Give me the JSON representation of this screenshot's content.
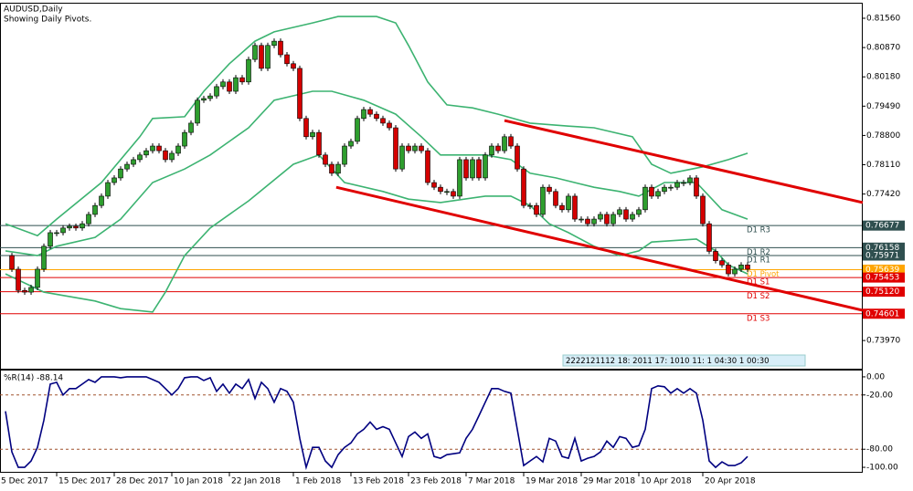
{
  "chart_data": [
    {
      "type": "candlestick",
      "title": "AUDUSD,Daily",
      "subtitle": "Showing Daily Pivots.",
      "timer_strip": "2222121112 18: 2011 17: 1010 11: 1 04:30 1 00:30",
      "bull_color": "#2e9e2e",
      "bear_color": "#d40000",
      "xlim": [
        -0.86,
        133.86
      ],
      "ylim": [
        0.73306,
        0.81904
      ],
      "yticks": [
        {
          "value": 0.8156,
          "label": "0.81560"
        },
        {
          "value": 0.8087,
          "label": "0.80870"
        },
        {
          "value": 0.8018,
          "label": "0.80180"
        },
        {
          "value": 0.7949,
          "label": "0.79490"
        },
        {
          "value": 0.788,
          "label": "0.78800"
        },
        {
          "value": 0.7811,
          "label": "0.78110"
        },
        {
          "value": 0.7742,
          "label": "0.77420"
        },
        {
          "value": 0.7397,
          "label": "0.73970"
        }
      ],
      "close": [
        0.7597,
        0.7565,
        0.7515,
        0.7511,
        0.7522,
        0.7565,
        0.7619,
        0.7651,
        0.7651,
        0.7662,
        0.7666,
        0.7662,
        0.7672,
        0.7694,
        0.7715,
        0.7737,
        0.7769,
        0.778,
        0.7801,
        0.7812,
        0.7823,
        0.7834,
        0.7844,
        0.7855,
        0.7844,
        0.7823,
        0.7838,
        0.7855,
        0.7887,
        0.7909,
        0.7963,
        0.7967,
        0.7973,
        0.7995,
        0.8006,
        0.7984,
        0.8016,
        0.8006,
        0.8059,
        0.8092,
        0.8038,
        0.8092,
        0.8102,
        0.807,
        0.8049,
        0.8038,
        0.792,
        0.7877,
        0.7887,
        0.7834,
        0.7812,
        0.7791,
        0.7812,
        0.7855,
        0.7866,
        0.792,
        0.7941,
        0.793,
        0.792,
        0.7909,
        0.7898,
        0.7801,
        0.7855,
        0.7844,
        0.7855,
        0.7844,
        0.7769,
        0.7758,
        0.7748,
        0.7748,
        0.7737,
        0.7823,
        0.778,
        0.7823,
        0.778,
        0.7834,
        0.7855,
        0.7844,
        0.7877,
        0.7855,
        0.7801,
        0.7715,
        0.7715,
        0.7694,
        0.7758,
        0.7748,
        0.7715,
        0.7705,
        0.7737,
        0.7683,
        0.7683,
        0.7672,
        0.7683,
        0.7694,
        0.7672,
        0.7694,
        0.7705,
        0.7683,
        0.7694,
        0.7705,
        0.7758,
        0.7737,
        0.7748,
        0.7758,
        0.7758,
        0.7769,
        0.7769,
        0.778,
        0.7737,
        0.7672,
        0.7607,
        0.7585,
        0.7575,
        0.7554,
        0.7565,
        0.7575,
        0.7565
      ],
      "bands": [
        {
          "color": "#3cb371",
          "x": [
            0,
            5,
            8,
            15,
            21,
            23,
            28,
            31,
            35,
            39,
            42,
            48,
            52,
            58,
            61,
            63,
            66,
            69,
            73,
            77,
            82,
            88,
            92,
            98,
            101,
            104,
            109,
            113,
            116
          ],
          "values": [
            0.7672,
            0.7644,
            0.7683,
            0.7769,
            0.7877,
            0.792,
            0.7924,
            0.7984,
            0.8049,
            0.8102,
            0.8124,
            0.8145,
            0.816,
            0.816,
            0.8145,
            0.8092,
            0.8006,
            0.7952,
            0.7945,
            0.793,
            0.7909,
            0.7902,
            0.7898,
            0.7877,
            0.7812,
            0.7791,
            0.7806,
            0.7823,
            0.7838
          ]
        },
        {
          "color": "#3cb371",
          "x": [
            0,
            5,
            8,
            14,
            18,
            23,
            28,
            32,
            38,
            42,
            48,
            51,
            56,
            61,
            65,
            68,
            75,
            79,
            82,
            86,
            92,
            96,
            99,
            103,
            108,
            112,
            116
          ],
          "values": [
            0.7608,
            0.7597,
            0.7619,
            0.764,
            0.7683,
            0.7769,
            0.7801,
            0.7834,
            0.7898,
            0.7963,
            0.7984,
            0.7984,
            0.7963,
            0.793,
            0.7877,
            0.7834,
            0.7834,
            0.7823,
            0.7791,
            0.778,
            0.7758,
            0.7748,
            0.7737,
            0.7769,
            0.7769,
            0.7705,
            0.7683
          ]
        },
        {
          "color": "#3cb371",
          "x": [
            0,
            6,
            14,
            18,
            23,
            25,
            28,
            32,
            38,
            45,
            49,
            53,
            59,
            63,
            68,
            75,
            79,
            82,
            85,
            88,
            92,
            96,
            99,
            101,
            108,
            111,
            113,
            116
          ],
          "values": [
            0.7554,
            0.7511,
            0.749,
            0.7472,
            0.7464,
            0.7511,
            0.7597,
            0.7662,
            0.7726,
            0.7812,
            0.7834,
            0.7769,
            0.7748,
            0.773,
            0.7722,
            0.7737,
            0.7737,
            0.7715,
            0.7672,
            0.7651,
            0.7619,
            0.7597,
            0.7608,
            0.7629,
            0.7636,
            0.7608,
            0.7575,
            0.7554
          ]
        }
      ],
      "trendlines": [
        {
          "color": "#e00000",
          "x": [
            78,
            134
          ],
          "values": [
            0.7915,
            0.7722
          ]
        },
        {
          "color": "#e00000",
          "x": [
            51.7,
            134
          ],
          "values": [
            0.7758,
            0.7468
          ]
        }
      ],
      "pivots": {
        "names": [
          "D1 R3",
          "D1 R2",
          "D1 R1",
          "D1 Pivot",
          "D1 S1",
          "D1 S2",
          "D1 S3"
        ],
        "values": [
          0.76677,
          0.76158,
          0.75971,
          0.75639,
          0.75453,
          0.7512,
          0.74601
        ],
        "value_labels": [
          "0.76677",
          "0.76158",
          "0.75971",
          "0.75639",
          "0.75453",
          "0.75120",
          "0.74601"
        ],
        "colors": [
          "#2f4f4f",
          "#2f4f4f",
          "#2f4f4f",
          "#ffa500",
          "#e00000",
          "#e00000",
          "#e00000"
        ]
      }
    },
    {
      "type": "line",
      "title": "%R(14) -88.14",
      "color": "#000080",
      "level_color": "#a0522d",
      "levels": [
        -20,
        -80
      ],
      "xlim": [
        -0.86,
        133.86
      ],
      "ylim": [
        -106,
        7
      ],
      "yticks": [
        {
          "value": 0,
          "label": "0.00"
        },
        {
          "value": -20,
          "label": "-20.00"
        },
        {
          "value": -80,
          "label": "-80.00"
        },
        {
          "value": -100,
          "label": "-100.00"
        }
      ],
      "xticks": [
        {
          "value": -1,
          "label": "5 Dec 2017"
        },
        {
          "value": 8,
          "label": "15 Dec 2017"
        },
        {
          "value": 17,
          "label": "28 Dec 2017"
        },
        {
          "value": 26,
          "label": "10 Jan 2018"
        },
        {
          "value": 35,
          "label": "22 Jan 2018"
        },
        {
          "value": 45,
          "label": "1 Feb 2018"
        },
        {
          "value": 54,
          "label": "13 Feb 2018"
        },
        {
          "value": 63,
          "label": "23 Feb 2018"
        },
        {
          "value": 72,
          "label": "7 Mar 2018"
        },
        {
          "value": 81,
          "label": "19 Mar 2018"
        },
        {
          "value": 90,
          "label": "29 Mar 2018"
        },
        {
          "value": 99,
          "label": "10 Apr 2018"
        },
        {
          "value": 109,
          "label": "20 Apr 2018"
        }
      ],
      "values": [
        -38,
        -83,
        -100,
        -100,
        -93,
        -78,
        -48,
        -8,
        -6,
        -20,
        -13,
        -13,
        -8,
        -3,
        -6,
        0,
        0,
        0,
        -1,
        0,
        0,
        0,
        0,
        -3,
        -6,
        -13,
        -20,
        -13,
        -1,
        0,
        0,
        -4,
        -1,
        -16,
        -8,
        -18,
        -8,
        -13,
        -3,
        -24,
        -6,
        -13,
        -28,
        -13,
        -16,
        -28,
        -68,
        -100,
        -78,
        -78,
        -93,
        -100,
        -86,
        -78,
        -73,
        -63,
        -58,
        -50,
        -58,
        -55,
        -58,
        -73,
        -88,
        -66,
        -61,
        -68,
        -63,
        -88,
        -90,
        -86,
        -85,
        -84,
        -68,
        -58,
        -43,
        -28,
        -13,
        -13,
        -16,
        -18,
        -58,
        -98,
        -93,
        -88,
        -94,
        -68,
        -71,
        -88,
        -90,
        -68,
        -93,
        -90,
        -88,
        -83,
        -71,
        -78,
        -66,
        -68,
        -78,
        -76,
        -58,
        -13,
        -10,
        -11,
        -18,
        -13,
        -18,
        -13,
        -18,
        -48,
        -93,
        -100,
        -94,
        -98,
        -98,
        -95,
        -88
      ]
    }
  ]
}
